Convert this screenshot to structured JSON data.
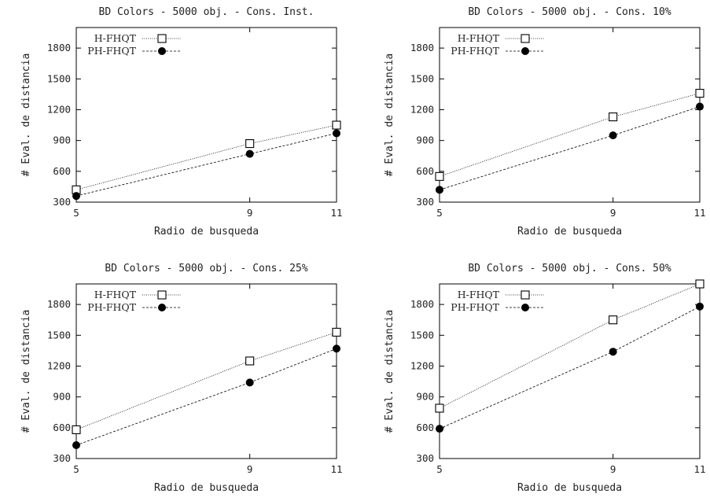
{
  "chart_data": [
    {
      "type": "line",
      "title": "BD Colors - 5000 obj. - Cons. Inst.",
      "xlabel": "Radio de busqueda",
      "ylabel": "# Eval. de distancia",
      "x": [
        5,
        9,
        11
      ],
      "xlim": [
        5,
        11
      ],
      "ylim": [
        300,
        2000
      ],
      "yticks": [
        300,
        600,
        900,
        1200,
        1500,
        1800
      ],
      "legend_position": "top-left",
      "grid": false,
      "series": [
        {
          "name": "H-FHQT",
          "marker": "open-square",
          "dash": "1,1.5",
          "values": [
            420,
            870,
            1050
          ]
        },
        {
          "name": "PH-FHQT",
          "marker": "filled-circle",
          "dash": "3,2",
          "values": [
            360,
            770,
            970
          ]
        }
      ]
    },
    {
      "type": "line",
      "title": "BD Colors - 5000 obj. - Cons. 10%",
      "xlabel": "Radio de busqueda",
      "ylabel": "# Eval. de distancia",
      "x": [
        5,
        9,
        11
      ],
      "xlim": [
        5,
        11
      ],
      "ylim": [
        300,
        2000
      ],
      "yticks": [
        300,
        600,
        900,
        1200,
        1500,
        1800
      ],
      "legend_position": "top-left",
      "grid": false,
      "series": [
        {
          "name": "H-FHQT",
          "marker": "open-square",
          "dash": "1,1.5",
          "values": [
            550,
            1130,
            1360
          ]
        },
        {
          "name": "PH-FHQT",
          "marker": "filled-circle",
          "dash": "3,2",
          "values": [
            420,
            950,
            1230
          ]
        }
      ]
    },
    {
      "type": "line",
      "title": "BD Colors - 5000 obj. - Cons. 25%",
      "xlabel": "Radio de busqueda",
      "ylabel": "# Eval. de distancia",
      "x": [
        5,
        9,
        11
      ],
      "xlim": [
        5,
        11
      ],
      "ylim": [
        300,
        2000
      ],
      "yticks": [
        300,
        600,
        900,
        1200,
        1500,
        1800
      ],
      "legend_position": "top-left",
      "grid": false,
      "series": [
        {
          "name": "H-FHQT",
          "marker": "open-square",
          "dash": "1,1.5",
          "values": [
            580,
            1250,
            1530
          ]
        },
        {
          "name": "PH-FHQT",
          "marker": "filled-circle",
          "dash": "3,2",
          "values": [
            430,
            1040,
            1370
          ]
        }
      ]
    },
    {
      "type": "line",
      "title": "BD Colors - 5000 obj. - Cons. 50%",
      "xlabel": "Radio de busqueda",
      "ylabel": "# Eval. de distancia",
      "x": [
        5,
        9,
        11
      ],
      "xlim": [
        5,
        11
      ],
      "ylim": [
        300,
        2000
      ],
      "yticks": [
        300,
        600,
        900,
        1200,
        1500,
        1800
      ],
      "legend_position": "top-left",
      "grid": false,
      "series": [
        {
          "name": "H-FHQT",
          "marker": "open-square",
          "dash": "1,1.5",
          "values": [
            790,
            1650,
            2000
          ]
        },
        {
          "name": "PH-FHQT",
          "marker": "filled-circle",
          "dash": "3,2",
          "values": [
            590,
            1340,
            1780
          ]
        }
      ]
    }
  ]
}
